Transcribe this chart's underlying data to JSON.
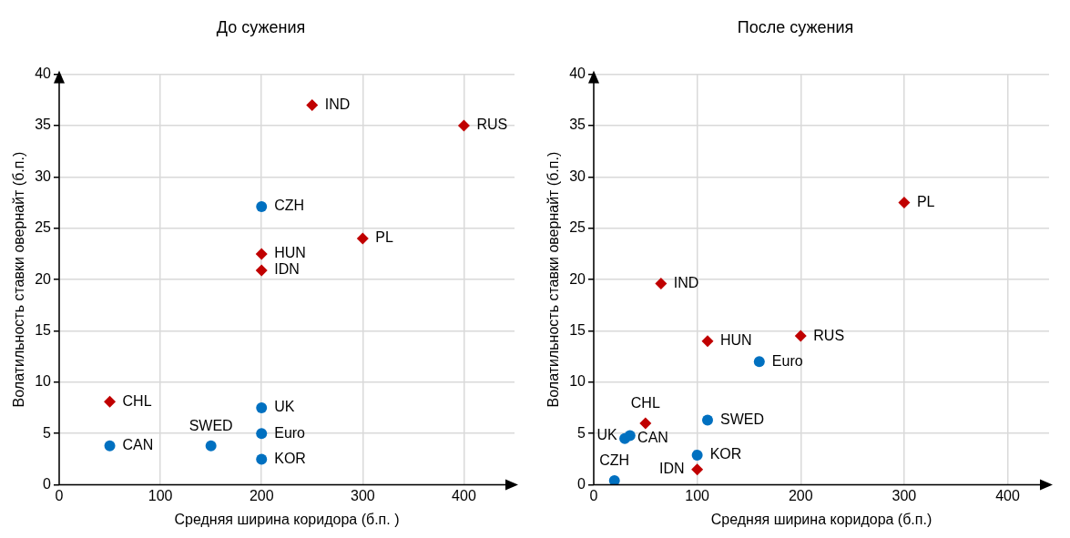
{
  "chart_data": [
    {
      "type": "scatter",
      "title": "До сужения",
      "xlabel": "Средняя ширина коридора (б.п. )",
      "ylabel": "Волатильность ставки овернайт (б.п.)",
      "xlim": [
        0,
        450
      ],
      "xticks": [
        0,
        100,
        200,
        300,
        400
      ],
      "ylim": [
        0,
        40
      ],
      "yticks": [
        0,
        5,
        10,
        15,
        20,
        25,
        30,
        35,
        40
      ],
      "grid": true,
      "legend": false,
      "series": [
        {
          "color": "#0070c0",
          "marker": "circle",
          "x": [
            200,
            200,
            200,
            200,
            50,
            150
          ],
          "values": [
            27.1,
            7.5,
            5,
            2.5,
            3.8,
            3.8
          ]
        },
        {
          "color": "#c00000",
          "marker": "diamond",
          "x": [
            250,
            400,
            300,
            200,
            200,
            50
          ],
          "values": [
            37,
            35,
            24,
            22.5,
            20.9,
            8.1
          ]
        }
      ],
      "annotations": [
        {
          "text": "CZH",
          "x": 200,
          "y": 27.1
        },
        {
          "text": "UK",
          "x": 200,
          "y": 7.5
        },
        {
          "text": "Euro",
          "x": 200,
          "y": 5
        },
        {
          "text": "KOR",
          "x": 200,
          "y": 2.5
        },
        {
          "text": "CAN",
          "x": 50,
          "y": 3.8
        },
        {
          "text": "SWED",
          "x": 150,
          "y": 3.8
        },
        {
          "text": "IND",
          "x": 250,
          "y": 37
        },
        {
          "text": "RUS",
          "x": 400,
          "y": 35
        },
        {
          "text": "PL",
          "x": 300,
          "y": 24
        },
        {
          "text": "HUN",
          "x": 200,
          "y": 22.5
        },
        {
          "text": "IDN",
          "x": 200,
          "y": 20.9
        },
        {
          "text": "CHL",
          "x": 50,
          "y": 8.1
        }
      ]
    },
    {
      "type": "scatter",
      "title": "После сужения",
      "xlabel": "Средняя ширина коридора (б.п.)",
      "ylabel": "Волатильность ставки овернайт (б.п.)",
      "xlim": [
        0,
        440
      ],
      "xticks": [
        0,
        100,
        200,
        300,
        400
      ],
      "ylim": [
        0,
        40
      ],
      "yticks": [
        0,
        5,
        10,
        15,
        20,
        25,
        30,
        35,
        40
      ],
      "grid": true,
      "legend": false,
      "series": [
        {
          "color": "#0070c0",
          "marker": "circle",
          "x": [
            20,
            30,
            35,
            100,
            110,
            160
          ],
          "values": [
            0.4,
            4.5,
            4.8,
            2.9,
            6.3,
            12
          ]
        },
        {
          "color": "#c00000",
          "marker": "diamond",
          "x": [
            50,
            100,
            110,
            65,
            200,
            300
          ],
          "values": [
            6,
            1.5,
            14,
            19.6,
            14.5,
            27.5
          ]
        }
      ],
      "annotations": [
        {
          "text": "CZH",
          "x": 20,
          "y": 0.4
        },
        {
          "text": "CAN",
          "x": 30,
          "y": 4.5
        },
        {
          "text": "UK",
          "x": 35,
          "y": 4.8
        },
        {
          "text": "KOR",
          "x": 100,
          "y": 2.9
        },
        {
          "text": "SWED",
          "x": 110,
          "y": 6.3
        },
        {
          "text": "Euro",
          "x": 160,
          "y": 12
        },
        {
          "text": "CHL",
          "x": 50,
          "y": 6
        },
        {
          "text": "IDN",
          "x": 100,
          "y": 1.5
        },
        {
          "text": "HUN",
          "x": 110,
          "y": 14
        },
        {
          "text": "IND",
          "x": 65,
          "y": 19.6
        },
        {
          "text": "RUS",
          "x": 200,
          "y": 14.5
        },
        {
          "text": "PL",
          "x": 300,
          "y": 27.5
        }
      ]
    }
  ]
}
